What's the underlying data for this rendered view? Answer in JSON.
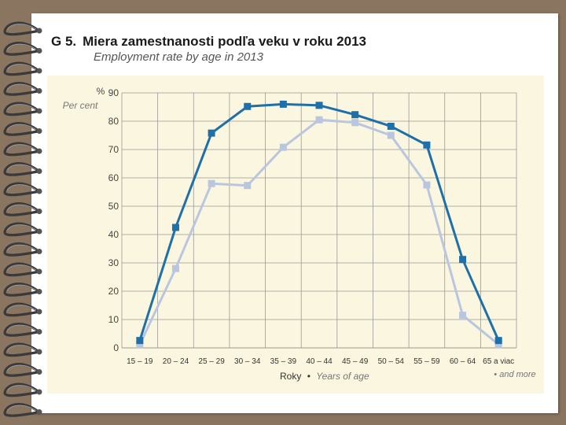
{
  "header": {
    "number": "G 5.",
    "title": "Miera zamestnanosti podľa veku v roku 2013",
    "subtitle": "Employment rate by age in 2013"
  },
  "chart_data": {
    "type": "line",
    "title": "Miera zamestnanosti podľa veku v roku 2013",
    "subtitle": "Employment rate by age in 2013",
    "ylabel": "%",
    "ylabel_en": "Per cent",
    "xlabel": "Roky",
    "xlabel_en": "Years of age",
    "xlabel_sep": "•",
    "categories": [
      "15 – 19",
      "20 – 24",
      "25 – 29",
      "30 – 34",
      "35 – 39",
      "40 – 44",
      "45 – 49",
      "50 – 54",
      "55 – 59",
      "60 – 64",
      "65 a viac"
    ],
    "last_category_en": "• and more",
    "ylim": [
      0,
      90
    ],
    "yticks": [
      0,
      10,
      20,
      30,
      40,
      50,
      60,
      70,
      80,
      90
    ],
    "grid": true,
    "series": [
      {
        "color": "#1f6fa8",
        "values": [
          2.6,
          42.5,
          75.8,
          85.2,
          86.0,
          85.6,
          82.3,
          78.2,
          71.6,
          31.2,
          2.6
        ]
      },
      {
        "color": "#b9c6e0",
        "values": [
          1.2,
          28.0,
          58.0,
          57.3,
          70.8,
          80.5,
          79.5,
          75.0,
          57.5,
          11.5,
          1.2
        ]
      }
    ]
  }
}
